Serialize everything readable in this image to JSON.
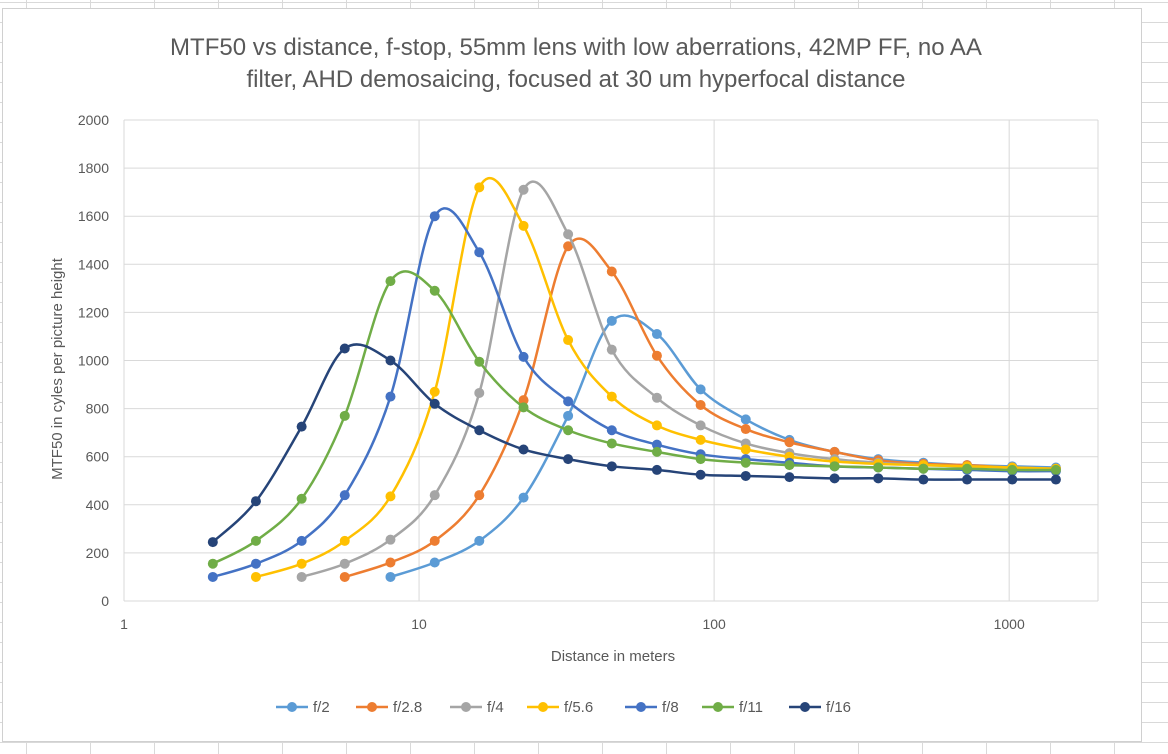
{
  "chart_data": {
    "type": "line",
    "title": "MTF50 vs distance, f-stop, 55mm lens with low aberrations, 42MP FF, no AA filter, AHD demosaicing, focused at 30 um hyperfocal distance",
    "title_lines": [
      "MTF50 vs distance, f-stop, 55mm lens with low aberrations, 42MP FF, no AA",
      "filter, AHD demosaicing, focused at 30 um hyperfocal distance"
    ],
    "xlabel": "Distance in meters",
    "ylabel": "MTF50 in cyles per picture height",
    "x_scale": "log",
    "xlim": [
      1,
      2000
    ],
    "ylim": [
      0,
      2000
    ],
    "x_ticks": [
      1,
      10,
      100,
      1000
    ],
    "x_tick_labels": [
      "1",
      "10",
      "100",
      "1000"
    ],
    "y_ticks": [
      0,
      200,
      400,
      600,
      800,
      1000,
      1200,
      1400,
      1600,
      1800,
      2000
    ],
    "grid": true,
    "legend_position": "bottom",
    "series": [
      {
        "name": "f/2",
        "color": "#5B9BD5",
        "x": [
          8,
          11.3,
          16,
          22.6,
          32,
          45,
          64,
          90,
          128,
          180,
          256,
          360,
          512,
          720,
          1024,
          1440
        ],
        "y": [
          100,
          160,
          250,
          430,
          770,
          1165,
          1110,
          880,
          755,
          670,
          620,
          590,
          575,
          565,
          560,
          555
        ]
      },
      {
        "name": "f/2.8",
        "color": "#ED7D31",
        "x": [
          5.6,
          8,
          11.3,
          16,
          22.6,
          32,
          45,
          64,
          90,
          128,
          180,
          256,
          360,
          512,
          720,
          1024,
          1440
        ],
        "y": [
          100,
          160,
          250,
          440,
          835,
          1475,
          1370,
          1020,
          815,
          715,
          660,
          620,
          585,
          570,
          565,
          555,
          550
        ]
      },
      {
        "name": "f/4",
        "color": "#A5A5A5",
        "x": [
          4,
          5.6,
          8,
          11.3,
          16,
          22.6,
          32,
          45,
          64,
          90,
          128,
          180,
          256,
          360,
          512,
          720,
          1024,
          1440
        ],
        "y": [
          100,
          155,
          255,
          440,
          865,
          1710,
          1525,
          1045,
          845,
          730,
          655,
          615,
          590,
          575,
          565,
          560,
          555,
          550
        ]
      },
      {
        "name": "f/5.6",
        "color": "#FFC000",
        "x": [
          2.8,
          4,
          5.6,
          8,
          11.3,
          16,
          22.6,
          32,
          45,
          64,
          90,
          128,
          180,
          256,
          360,
          512,
          720,
          1024,
          1440
        ],
        "y": [
          100,
          155,
          250,
          435,
          870,
          1720,
          1560,
          1085,
          850,
          730,
          670,
          630,
          600,
          580,
          570,
          565,
          560,
          555,
          550
        ]
      },
      {
        "name": "f/8",
        "color": "#4472C4",
        "x": [
          2,
          2.8,
          4,
          5.6,
          8,
          11.3,
          16,
          22.6,
          32,
          45,
          64,
          90,
          128,
          180,
          256,
          360,
          512,
          720,
          1024,
          1440
        ],
        "y": [
          100,
          155,
          250,
          440,
          850,
          1600,
          1450,
          1015,
          830,
          710,
          650,
          610,
          590,
          575,
          560,
          555,
          550,
          545,
          540,
          540
        ]
      },
      {
        "name": "f/11",
        "color": "#70AD47",
        "x": [
          2,
          2.8,
          4,
          5.6,
          8,
          11.3,
          16,
          22.6,
          32,
          45,
          64,
          90,
          128,
          180,
          256,
          360,
          512,
          720,
          1024,
          1440
        ],
        "y": [
          155,
          250,
          425,
          770,
          1330,
          1290,
          995,
          805,
          710,
          655,
          620,
          590,
          575,
          565,
          560,
          555,
          550,
          550,
          545,
          545
        ]
      },
      {
        "name": "f/16",
        "color": "#264478",
        "x": [
          2,
          2.8,
          4,
          5.6,
          8,
          11.3,
          16,
          22.6,
          32,
          45,
          64,
          90,
          128,
          180,
          256,
          360,
          512,
          720,
          1024,
          1440
        ],
        "y": [
          245,
          415,
          725,
          1050,
          1000,
          820,
          710,
          630,
          590,
          560,
          545,
          525,
          520,
          515,
          510,
          510,
          505,
          505,
          505,
          505
        ]
      }
    ]
  }
}
